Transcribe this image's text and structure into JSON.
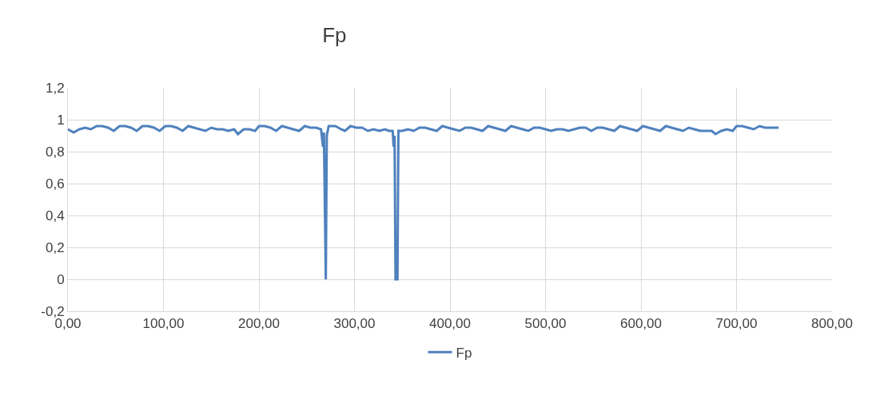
{
  "chart_data": {
    "type": "line",
    "title": "Fp",
    "legend": "bottom",
    "grid": true,
    "marker": "none",
    "line_style": "solid",
    "xlim": [
      0,
      800
    ],
    "xticks": [
      {
        "value": 0,
        "label": "0,00"
      },
      {
        "value": 100,
        "label": "100,00"
      },
      {
        "value": 200,
        "label": "200,00"
      },
      {
        "value": 300,
        "label": "300,00"
      },
      {
        "value": 400,
        "label": "400,00"
      },
      {
        "value": 500,
        "label": "500,00"
      },
      {
        "value": 600,
        "label": "600,00"
      },
      {
        "value": 700,
        "label": "700,00"
      },
      {
        "value": 800,
        "label": "800,00"
      }
    ],
    "ylim": [
      -0.2,
      1.2
    ],
    "yticks": [
      {
        "value": -0.2,
        "label": "-0,2"
      },
      0,
      {
        "value": 0.2,
        "label": "0,2"
      },
      {
        "value": 0.4,
        "label": "0,4"
      },
      {
        "value": 0.6,
        "label": "0,6"
      },
      {
        "value": 0.8,
        "label": "0,8"
      },
      1,
      {
        "value": 1.2,
        "label": "1,2"
      }
    ],
    "x": [
      0,
      6,
      12,
      18,
      24,
      30,
      36,
      42,
      48,
      54,
      60,
      66,
      72,
      78,
      84,
      90,
      96,
      102,
      108,
      114,
      120,
      126,
      132,
      138,
      144,
      150,
      156,
      162,
      168,
      174,
      178,
      184,
      190,
      196,
      200,
      206,
      212,
      218,
      224,
      230,
      236,
      242,
      248,
      254,
      260,
      265,
      267,
      268,
      270,
      271,
      273,
      280,
      286,
      290,
      296,
      302,
      308,
      314,
      320,
      326,
      332,
      336,
      340,
      341,
      342,
      343,
      345,
      346,
      350,
      356,
      362,
      368,
      374,
      380,
      386,
      392,
      398,
      404,
      410,
      416,
      422,
      428,
      434,
      440,
      446,
      452,
      458,
      464,
      470,
      476,
      482,
      488,
      494,
      500,
      506,
      512,
      518,
      524,
      530,
      536,
      542,
      548,
      554,
      560,
      566,
      572,
      578,
      584,
      590,
      596,
      602,
      608,
      614,
      620,
      626,
      632,
      638,
      644,
      650,
      656,
      662,
      668,
      674,
      678,
      684,
      690,
      696,
      700,
      706,
      712,
      718,
      724,
      730,
      736,
      744
    ],
    "series": [
      {
        "name": "Fp",
        "color": "#4f81bd",
        "values": [
          0.94,
          0.92,
          0.94,
          0.95,
          0.94,
          0.96,
          0.96,
          0.95,
          0.93,
          0.96,
          0.96,
          0.95,
          0.93,
          0.96,
          0.96,
          0.95,
          0.93,
          0.96,
          0.96,
          0.95,
          0.93,
          0.96,
          0.95,
          0.94,
          0.93,
          0.95,
          0.94,
          0.94,
          0.93,
          0.94,
          0.91,
          0.94,
          0.94,
          0.93,
          0.96,
          0.96,
          0.95,
          0.93,
          0.96,
          0.95,
          0.94,
          0.93,
          0.96,
          0.95,
          0.95,
          0.94,
          0.83,
          0.92,
          0,
          0.9,
          0.96,
          0.96,
          0.94,
          0.93,
          0.96,
          0.95,
          0.95,
          0.93,
          0.94,
          0.93,
          0.94,
          0.93,
          0.93,
          0.83,
          0.9,
          0,
          0,
          0.93,
          0.93,
          0.94,
          0.93,
          0.95,
          0.95,
          0.94,
          0.93,
          0.96,
          0.95,
          0.94,
          0.93,
          0.95,
          0.95,
          0.94,
          0.93,
          0.96,
          0.95,
          0.94,
          0.93,
          0.96,
          0.95,
          0.94,
          0.93,
          0.95,
          0.95,
          0.94,
          0.93,
          0.94,
          0.94,
          0.93,
          0.94,
          0.95,
          0.95,
          0.93,
          0.95,
          0.95,
          0.94,
          0.93,
          0.96,
          0.95,
          0.94,
          0.93,
          0.96,
          0.95,
          0.94,
          0.93,
          0.96,
          0.95,
          0.94,
          0.93,
          0.95,
          0.94,
          0.93,
          0.93,
          0.93,
          0.91,
          0.93,
          0.94,
          0.93,
          0.96,
          0.96,
          0.95,
          0.94,
          0.96,
          0.95,
          0.95,
          0.95
        ]
      }
    ]
  }
}
